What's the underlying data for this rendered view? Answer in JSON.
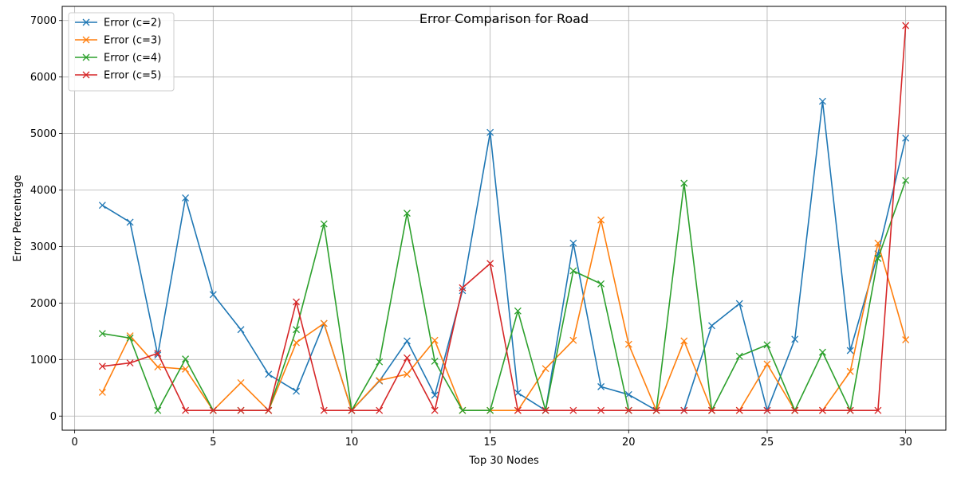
{
  "chart_data": {
    "type": "line",
    "title": "Error Comparison for Road",
    "xlabel": "Top 30 Nodes",
    "ylabel": "Error Percentage",
    "xlim": [
      -0.45,
      31.45
    ],
    "ylim": [
      -250,
      7250
    ],
    "xticks": [
      0,
      5,
      10,
      15,
      20,
      25,
      30
    ],
    "yticks": [
      0,
      1000,
      2000,
      3000,
      4000,
      5000,
      6000,
      7000
    ],
    "grid": true,
    "legend_position": "upper-left",
    "marker": "x",
    "x": [
      1,
      2,
      3,
      4,
      5,
      6,
      7,
      8,
      9,
      10,
      11,
      12,
      13,
      14,
      15,
      16,
      17,
      18,
      19,
      20,
      21,
      22,
      23,
      24,
      25,
      26,
      27,
      28,
      29,
      30
    ],
    "series": [
      {
        "name": "Error (c=2)",
        "color": "#1f77b4",
        "values": [
          3730,
          3430,
          1080,
          3860,
          2150,
          1530,
          740,
          440,
          1640,
          100,
          620,
          1330,
          370,
          2220,
          5020,
          410,
          100,
          3060,
          520,
          380,
          100,
          100,
          1600,
          1990,
          100,
          1360,
          5570,
          1160,
          2870,
          4920
        ]
      },
      {
        "name": "Error (c=3)",
        "color": "#ff7f0e",
        "values": [
          420,
          1420,
          870,
          830,
          100,
          590,
          100,
          1300,
          1640,
          100,
          630,
          740,
          1340,
          100,
          100,
          100,
          840,
          1340,
          3470,
          1270,
          100,
          1330,
          100,
          100,
          920,
          100,
          100,
          790,
          3060,
          1350
        ]
      },
      {
        "name": "Error (c=4)",
        "color": "#2ca02c",
        "values": [
          1460,
          1380,
          100,
          1010,
          100,
          100,
          100,
          1530,
          3400,
          100,
          960,
          3590,
          970,
          100,
          100,
          1860,
          100,
          2570,
          2340,
          100,
          100,
          4120,
          100,
          1060,
          1260,
          100,
          1130,
          100,
          2790,
          4170
        ]
      },
      {
        "name": "Error (c=5)",
        "color": "#d62728",
        "values": [
          880,
          940,
          1110,
          100,
          100,
          100,
          100,
          2020,
          100,
          100,
          100,
          1030,
          100,
          2270,
          2700,
          100,
          100,
          100,
          100,
          100,
          100,
          100,
          100,
          100,
          100,
          100,
          100,
          100,
          100,
          6910
        ]
      }
    ]
  }
}
